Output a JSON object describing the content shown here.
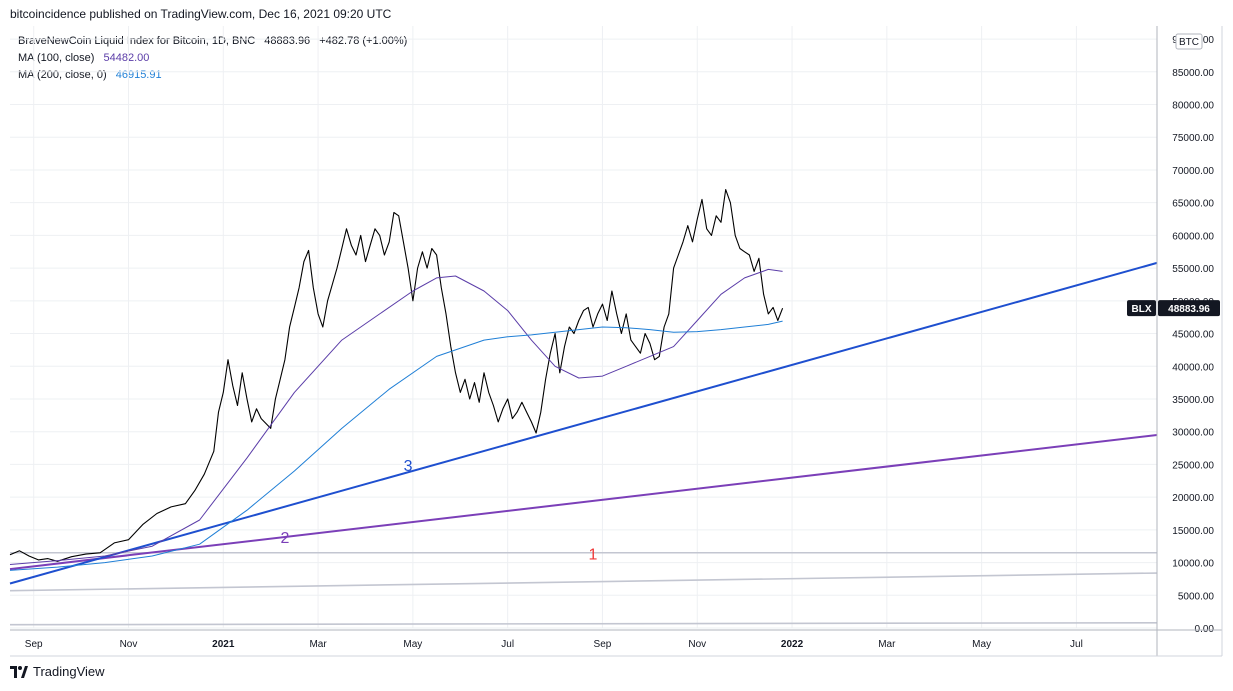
{
  "header": {
    "publisher_line": "bitcoincidence published on TradingView.com, Dec 16, 2021 09:20 UTC"
  },
  "legend": {
    "symbol_line": "BraveNewCoin Liquid Index for Bitcoin, 1D, BNC",
    "last": "48883.96",
    "change": "+482.78 (+1.00%)",
    "ma100_label": "MA (100, close)",
    "ma100_value": "54482.00",
    "ma200_label": "MA (200, close, 0)",
    "ma200_value": "46915.91"
  },
  "footer": {
    "brand": "TradingView"
  },
  "colors": {
    "price": "#000000",
    "ma100": "#5b3da8",
    "ma200": "#1f7fd6",
    "line1": "#c3c6d1",
    "line2": "#7b3fb8",
    "line3": "#1e4fcf",
    "label1": "#ef3a3a",
    "grid": "#eef0f3",
    "axis_text": "#131722"
  },
  "chart_data": {
    "type": "line",
    "ylim": [
      0,
      92000
    ],
    "y_ticks": [
      "0.00",
      "5000.00",
      "10000.00",
      "15000.00",
      "20000.00",
      "25000.00",
      "30000.00",
      "35000.00",
      "40000.00",
      "45000.00",
      "50000.00",
      "55000.00",
      "60000.00",
      "65000.00",
      "70000.00",
      "75000.00",
      "80000.00",
      "85000.00",
      "90000.00"
    ],
    "x_ticks": [
      {
        "label": "Sep",
        "t": 0.5
      },
      {
        "label": "Nov",
        "t": 2.5
      },
      {
        "label": "2021",
        "t": 4.5,
        "bold": true
      },
      {
        "label": "Mar",
        "t": 6.5
      },
      {
        "label": "May",
        "t": 8.5
      },
      {
        "label": "Jul",
        "t": 10.5
      },
      {
        "label": "Sep",
        "t": 12.5
      },
      {
        "label": "Nov",
        "t": 14.5
      },
      {
        "label": "2022",
        "t": 16.5,
        "bold": true
      },
      {
        "label": "Mar",
        "t": 18.5
      },
      {
        "label": "May",
        "t": 20.5
      },
      {
        "label": "Jul",
        "t": 22.5
      }
    ],
    "currency_badge": "BTC",
    "price_tag": {
      "symbol": "BLX",
      "value": "48883.96"
    },
    "series": [
      {
        "name": "BLX",
        "color": "#000000",
        "points": [
          [
            0,
            11200
          ],
          [
            0.2,
            11800
          ],
          [
            0.4,
            11000
          ],
          [
            0.6,
            10400
          ],
          [
            0.8,
            10600
          ],
          [
            1.0,
            10200
          ],
          [
            1.3,
            10900
          ],
          [
            1.6,
            11300
          ],
          [
            1.9,
            11500
          ],
          [
            2.2,
            13000
          ],
          [
            2.5,
            13500
          ],
          [
            2.8,
            15800
          ],
          [
            3.1,
            17500
          ],
          [
            3.4,
            18500
          ],
          [
            3.7,
            19000
          ],
          [
            3.9,
            21000
          ],
          [
            4.1,
            23500
          ],
          [
            4.3,
            27000
          ],
          [
            4.4,
            33000
          ],
          [
            4.5,
            36000
          ],
          [
            4.6,
            41000
          ],
          [
            4.7,
            37000
          ],
          [
            4.8,
            34000
          ],
          [
            4.9,
            39000
          ],
          [
            5.0,
            35000
          ],
          [
            5.1,
            31500
          ],
          [
            5.2,
            33500
          ],
          [
            5.3,
            32000
          ],
          [
            5.5,
            30500
          ],
          [
            5.6,
            35000
          ],
          [
            5.7,
            38000
          ],
          [
            5.8,
            41000
          ],
          [
            5.9,
            46000
          ],
          [
            6.0,
            49000
          ],
          [
            6.1,
            52000
          ],
          [
            6.2,
            56000
          ],
          [
            6.3,
            57700
          ],
          [
            6.4,
            52000
          ],
          [
            6.5,
            48000
          ],
          [
            6.6,
            46000
          ],
          [
            6.7,
            50000
          ],
          [
            6.8,
            52500
          ],
          [
            6.9,
            55000
          ],
          [
            7.0,
            58000
          ],
          [
            7.1,
            61000
          ],
          [
            7.2,
            58500
          ],
          [
            7.3,
            57000
          ],
          [
            7.4,
            60000
          ],
          [
            7.5,
            56000
          ],
          [
            7.6,
            58500
          ],
          [
            7.7,
            61000
          ],
          [
            7.8,
            60000
          ],
          [
            7.9,
            57000
          ],
          [
            8.0,
            59000
          ],
          [
            8.1,
            63500
          ],
          [
            8.2,
            63000
          ],
          [
            8.3,
            59000
          ],
          [
            8.4,
            55000
          ],
          [
            8.5,
            50000
          ],
          [
            8.6,
            55000
          ],
          [
            8.7,
            57500
          ],
          [
            8.8,
            55000
          ],
          [
            8.9,
            58000
          ],
          [
            9.0,
            57000
          ],
          [
            9.1,
            52000
          ],
          [
            9.2,
            48000
          ],
          [
            9.3,
            43000
          ],
          [
            9.4,
            39000
          ],
          [
            9.5,
            36000
          ],
          [
            9.6,
            38000
          ],
          [
            9.7,
            35000
          ],
          [
            9.8,
            37500
          ],
          [
            9.9,
            34500
          ],
          [
            10.0,
            39000
          ],
          [
            10.1,
            36000
          ],
          [
            10.2,
            34000
          ],
          [
            10.3,
            31500
          ],
          [
            10.4,
            33500
          ],
          [
            10.5,
            35000
          ],
          [
            10.6,
            32000
          ],
          [
            10.7,
            33000
          ],
          [
            10.8,
            34500
          ],
          [
            10.9,
            33000
          ],
          [
            11.0,
            31500
          ],
          [
            11.1,
            29800
          ],
          [
            11.2,
            33000
          ],
          [
            11.3,
            38000
          ],
          [
            11.4,
            42000
          ],
          [
            11.5,
            45000
          ],
          [
            11.6,
            39000
          ],
          [
            11.7,
            43000
          ],
          [
            11.8,
            46000
          ],
          [
            11.9,
            45000
          ],
          [
            12.0,
            47000
          ],
          [
            12.1,
            48500
          ],
          [
            12.2,
            49000
          ],
          [
            12.3,
            46000
          ],
          [
            12.4,
            48000
          ],
          [
            12.5,
            49500
          ],
          [
            12.6,
            47000
          ],
          [
            12.7,
            51500
          ],
          [
            12.8,
            48000
          ],
          [
            12.9,
            45000
          ],
          [
            13.0,
            48000
          ],
          [
            13.1,
            44000
          ],
          [
            13.2,
            43000
          ],
          [
            13.3,
            42000
          ],
          [
            13.4,
            45000
          ],
          [
            13.5,
            43500
          ],
          [
            13.6,
            41000
          ],
          [
            13.7,
            41500
          ],
          [
            13.8,
            46000
          ],
          [
            13.9,
            48000
          ],
          [
            14.0,
            55000
          ],
          [
            14.1,
            57000
          ],
          [
            14.2,
            59000
          ],
          [
            14.3,
            61500
          ],
          [
            14.4,
            59000
          ],
          [
            14.5,
            62500
          ],
          [
            14.6,
            65500
          ],
          [
            14.7,
            61000
          ],
          [
            14.8,
            60000
          ],
          [
            14.9,
            63000
          ],
          [
            15.0,
            62000
          ],
          [
            15.1,
            67000
          ],
          [
            15.2,
            65000
          ],
          [
            15.3,
            60000
          ],
          [
            15.4,
            58000
          ],
          [
            15.5,
            57500
          ],
          [
            15.6,
            57000
          ],
          [
            15.7,
            54500
          ],
          [
            15.8,
            56500
          ],
          [
            15.9,
            51000
          ],
          [
            16.0,
            48000
          ],
          [
            16.1,
            49000
          ],
          [
            16.2,
            47000
          ],
          [
            16.3,
            48880
          ]
        ]
      },
      {
        "name": "MA (100, close)",
        "color": "#5b3da8",
        "points": [
          [
            0,
            9700
          ],
          [
            1,
            10300
          ],
          [
            2,
            11000
          ],
          [
            3,
            12500
          ],
          [
            4,
            16500
          ],
          [
            5,
            26000
          ],
          [
            6,
            36000
          ],
          [
            7,
            44000
          ],
          [
            7.8,
            48000
          ],
          [
            8.5,
            51500
          ],
          [
            9,
            53500
          ],
          [
            9.4,
            53800
          ],
          [
            10,
            51500
          ],
          [
            10.5,
            48500
          ],
          [
            11,
            44000
          ],
          [
            11.5,
            40000
          ],
          [
            12,
            38200
          ],
          [
            12.5,
            38500
          ],
          [
            13,
            40000
          ],
          [
            13.5,
            41500
          ],
          [
            14,
            43000
          ],
          [
            14.5,
            47000
          ],
          [
            15,
            51000
          ],
          [
            15.5,
            53500
          ],
          [
            16.0,
            54800
          ],
          [
            16.3,
            54500
          ]
        ]
      },
      {
        "name": "MA (200, close, 0)",
        "color": "#1f7fd6",
        "points": [
          [
            0,
            8800
          ],
          [
            1,
            9300
          ],
          [
            2,
            10000
          ],
          [
            3,
            11000
          ],
          [
            4,
            12800
          ],
          [
            5,
            18000
          ],
          [
            6,
            24000
          ],
          [
            7,
            30500
          ],
          [
            8,
            36500
          ],
          [
            9,
            41500
          ],
          [
            10,
            44000
          ],
          [
            10.5,
            44500
          ],
          [
            11,
            44800
          ],
          [
            12,
            45600
          ],
          [
            12.5,
            46000
          ],
          [
            13,
            45900
          ],
          [
            13.5,
            45600
          ],
          [
            14,
            45200
          ],
          [
            14.5,
            45300
          ],
          [
            15,
            45600
          ],
          [
            15.5,
            46000
          ],
          [
            16.0,
            46400
          ],
          [
            16.3,
            46900
          ]
        ]
      }
    ],
    "trendlines": [
      {
        "label": "1",
        "color": "#c3c6d1",
        "points": [
          [
            0,
            11500
          ],
          [
            24.2,
            11500
          ]
        ]
      },
      {
        "label": "",
        "color": "#c3c6d1",
        "points": [
          [
            0,
            5700
          ],
          [
            24.2,
            8400
          ]
        ]
      },
      {
        "label": "",
        "color": "#c3c6d1",
        "points": [
          [
            0,
            500
          ],
          [
            24.2,
            800
          ]
        ]
      },
      {
        "label": "2",
        "color": "#7b3fb8",
        "points": [
          [
            0,
            9000
          ],
          [
            24.2,
            29500
          ]
        ]
      },
      {
        "label": "3",
        "color": "#1e4fcf",
        "points": [
          [
            0,
            6800
          ],
          [
            24.2,
            55800
          ]
        ]
      }
    ],
    "annotations": [
      {
        "text": "1",
        "t": 12.3,
        "y": 10500,
        "color": "#ef3a3a"
      },
      {
        "text": "2",
        "t": 5.8,
        "y": 13000,
        "color": "#7b3fb8"
      },
      {
        "text": "3",
        "t": 8.4,
        "y": 24000,
        "color": "#1e4fcf"
      }
    ]
  }
}
